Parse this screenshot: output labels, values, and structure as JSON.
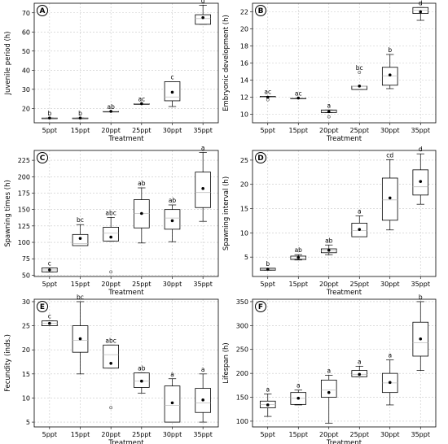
{
  "chart_data": [
    {
      "type": "box",
      "panel_label": "A",
      "categories": [
        "5ppt",
        "15ppt",
        "20ppt",
        "25ppt",
        "30ppt",
        "35ppt"
      ],
      "xlabel": "Treatment",
      "ylabel": "Juvenile period (h)",
      "ylim": [
        12.5,
        75
      ],
      "yticks": [
        20,
        30,
        40,
        50,
        60,
        70
      ],
      "boxes": [
        {
          "q1": 15,
          "med": 15,
          "q3": 15,
          "wlo": 15,
          "whi": 15,
          "mean": 15,
          "outliers": [],
          "sig": "b"
        },
        {
          "q1": 15,
          "med": 15,
          "q3": 15,
          "wlo": 15,
          "whi": 15,
          "mean": 15,
          "outliers": [],
          "sig": "b"
        },
        {
          "q1": 18.5,
          "med": 18.5,
          "q3": 18.5,
          "wlo": 18.5,
          "whi": 18.5,
          "mean": 18.5,
          "outliers": [],
          "sig": "ab"
        },
        {
          "q1": 22.5,
          "med": 22.5,
          "q3": 22.5,
          "wlo": 22.5,
          "whi": 22.5,
          "mean": 22.5,
          "outliers": [],
          "sig": "ac"
        },
        {
          "q1": 24,
          "med": 26,
          "q3": 34,
          "wlo": 21,
          "whi": 34,
          "mean": 28.5,
          "outliers": [],
          "sig": "c"
        },
        {
          "q1": 64,
          "med": 67,
          "q3": 69,
          "wlo": 64,
          "whi": 74,
          "mean": 67.5,
          "outliers": [],
          "sig": "d"
        }
      ]
    },
    {
      "type": "box",
      "panel_label": "B",
      "categories": [
        "5ppt",
        "15ppt",
        "20ppt",
        "25ppt",
        "30ppt",
        "35ppt"
      ],
      "xlabel": "Treatment",
      "ylabel": "Embryonic development (h)",
      "ylim": [
        9,
        23
      ],
      "yticks": [
        10,
        12,
        14,
        16,
        18,
        20,
        22
      ],
      "boxes": [
        {
          "q1": 12,
          "med": 12,
          "q3": 12.1,
          "wlo": 12,
          "whi": 12.1,
          "mean": 12,
          "outliers": [
            11.7
          ],
          "sig": "ac"
        },
        {
          "q1": 11.9,
          "med": 11.9,
          "q3": 11.9,
          "wlo": 11.9,
          "whi": 11.9,
          "mean": 11.9,
          "outliers": [],
          "sig": "ac"
        },
        {
          "q1": 10.2,
          "med": 10.4,
          "q3": 10.5,
          "wlo": 10.2,
          "whi": 10.5,
          "mean": 10.3,
          "outliers": [
            9.7
          ],
          "sig": "a"
        },
        {
          "q1": 12.9,
          "med": 13.3,
          "q3": 13.3,
          "wlo": 12.9,
          "whi": 13.3,
          "mean": 13.3,
          "outliers": [
            14.9
          ],
          "sig": "bc"
        },
        {
          "q1": 13.4,
          "med": 14.5,
          "q3": 15.5,
          "wlo": 13,
          "whi": 17,
          "mean": 14.6,
          "outliers": [],
          "sig": "b"
        },
        {
          "q1": 21.8,
          "med": 22.2,
          "q3": 22.5,
          "wlo": 21,
          "whi": 22.5,
          "mean": 22,
          "outliers": [],
          "sig": "d"
        }
      ]
    },
    {
      "type": "box",
      "panel_label": "C",
      "categories": [
        "5ppt",
        "15ppt",
        "20ppt",
        "25ppt",
        "30ppt",
        "35ppt"
      ],
      "xlabel": "Treatment",
      "ylabel": "Spawning times (h)",
      "ylim": [
        48,
        240
      ],
      "yticks": [
        50,
        75,
        100,
        125,
        150,
        175,
        200,
        225
      ],
      "boxes": [
        {
          "q1": 55,
          "med": 58,
          "q3": 61,
          "wlo": 55,
          "whi": 61,
          "mean": 58,
          "outliers": [],
          "sig": "c"
        },
        {
          "q1": 95,
          "med": 98,
          "q3": 112,
          "wlo": 95,
          "whi": 127,
          "mean": 106,
          "outliers": [],
          "sig": "bc"
        },
        {
          "q1": 102,
          "med": 114,
          "q3": 123,
          "wlo": 102,
          "whi": 138,
          "mean": 108,
          "outliers": [
            55
          ],
          "sig": "abc"
        },
        {
          "q1": 122,
          "med": 144,
          "q3": 165,
          "wlo": 99,
          "whi": 183,
          "mean": 144,
          "outliers": [],
          "sig": "ab"
        },
        {
          "q1": 120,
          "med": 137,
          "q3": 150,
          "wlo": 101,
          "whi": 157,
          "mean": 133,
          "outliers": [],
          "sig": "ab"
        },
        {
          "q1": 153,
          "med": 176,
          "q3": 207,
          "wlo": 132,
          "whi": 237,
          "mean": 182,
          "outliers": [],
          "sig": "a"
        }
      ]
    },
    {
      "type": "box",
      "panel_label": "D",
      "categories": [
        "5ppt",
        "15ppt",
        "20ppt",
        "25ppt",
        "30ppt",
        "35ppt"
      ],
      "xlabel": "Treatment",
      "ylabel": "Spawning interval (h)",
      "ylim": [
        1,
        27
      ],
      "yticks": [
        5,
        10,
        15,
        20,
        25
      ],
      "boxes": [
        {
          "q1": 2.3,
          "med": 2.5,
          "q3": 2.7,
          "wlo": 2.3,
          "whi": 2.7,
          "mean": 2.5,
          "outliers": [],
          "sig": "b"
        },
        {
          "q1": 4.5,
          "med": 4.8,
          "q3": 5.2,
          "wlo": 4.4,
          "whi": 5.5,
          "mean": 4.9,
          "outliers": [],
          "sig": "ab"
        },
        {
          "q1": 5.9,
          "med": 6.3,
          "q3": 6.7,
          "wlo": 5.5,
          "whi": 7.5,
          "mean": 6.4,
          "outliers": [],
          "sig": "ab"
        },
        {
          "q1": 9.2,
          "med": 10.5,
          "q3": 12,
          "wlo": 9.2,
          "whi": 13.5,
          "mean": 10.7,
          "outliers": [],
          "sig": "a"
        },
        {
          "q1": 12.6,
          "med": 16.8,
          "q3": 21.3,
          "wlo": 10.6,
          "whi": 25.1,
          "mean": 17.2,
          "outliers": [],
          "sig": "cd"
        },
        {
          "q1": 17.8,
          "med": 19.5,
          "q3": 23,
          "wlo": 15.9,
          "whi": 26.3,
          "mean": 20.6,
          "outliers": [],
          "sig": "d"
        }
      ]
    },
    {
      "type": "box",
      "panel_label": "E",
      "categories": [
        "5ppt",
        "15ppt",
        "20ppt",
        "25ppt",
        "30ppt",
        "35ppt"
      ],
      "xlabel": "Treatment",
      "ylabel": "Fecundity (inds.)",
      "ylim": [
        4,
        30.5
      ],
      "yticks": [
        5,
        10,
        15,
        20,
        25,
        30
      ],
      "boxes": [
        {
          "q1": 25,
          "med": 25.5,
          "q3": 26,
          "wlo": 25,
          "whi": 26,
          "mean": 25.5,
          "outliers": [],
          "sig": "c"
        },
        {
          "q1": 19.5,
          "med": 22,
          "q3": 25,
          "wlo": 15,
          "whi": 30,
          "mean": 22.3,
          "outliers": [],
          "sig": "bc"
        },
        {
          "q1": 16.2,
          "med": 19,
          "q3": 21,
          "wlo": 16.2,
          "whi": 21,
          "mean": 17.2,
          "outliers": [
            8
          ],
          "sig": "abc"
        },
        {
          "q1": 12.2,
          "med": 13.5,
          "q3": 15.2,
          "wlo": 11,
          "whi": 15.2,
          "mean": 13.5,
          "outliers": [],
          "sig": "ab"
        },
        {
          "q1": 5,
          "med": 8.5,
          "q3": 12.5,
          "wlo": 5,
          "whi": 14,
          "mean": 9,
          "outliers": [],
          "sig": "a"
        },
        {
          "q1": 7,
          "med": 9,
          "q3": 12,
          "wlo": 5,
          "whi": 15,
          "mean": 9.6,
          "outliers": [],
          "sig": "a"
        }
      ]
    },
    {
      "type": "box",
      "panel_label": "F",
      "categories": [
        "5ppt",
        "15ppt",
        "20ppt",
        "25ppt",
        "30ppt",
        "35ppt"
      ],
      "xlabel": "Treatment",
      "ylabel": "Lifespan (h)",
      "ylim": [
        88,
        355
      ],
      "yticks": [
        100,
        150,
        200,
        250,
        300,
        350
      ],
      "boxes": [
        {
          "q1": 128,
          "med": 135,
          "q3": 142,
          "wlo": 110,
          "whi": 157,
          "mean": 134,
          "outliers": [],
          "sig": "a"
        },
        {
          "q1": 135,
          "med": 148,
          "q3": 160,
          "wlo": 134,
          "whi": 165,
          "mean": 148,
          "outliers": [],
          "sig": "a"
        },
        {
          "q1": 150,
          "med": 165,
          "q3": 186,
          "wlo": 96,
          "whi": 196,
          "mean": 160,
          "outliers": [],
          "sig": "a"
        },
        {
          "q1": 193,
          "med": 198,
          "q3": 206,
          "wlo": 193,
          "whi": 215,
          "mean": 198,
          "outliers": [],
          "sig": "a"
        },
        {
          "q1": 160,
          "med": 180,
          "q3": 200,
          "wlo": 134,
          "whi": 228,
          "mean": 181,
          "outliers": [],
          "sig": "a"
        },
        {
          "q1": 236,
          "med": 264,
          "q3": 307,
          "wlo": 206,
          "whi": 350,
          "mean": 272,
          "outliers": [],
          "sig": "b"
        }
      ]
    }
  ]
}
